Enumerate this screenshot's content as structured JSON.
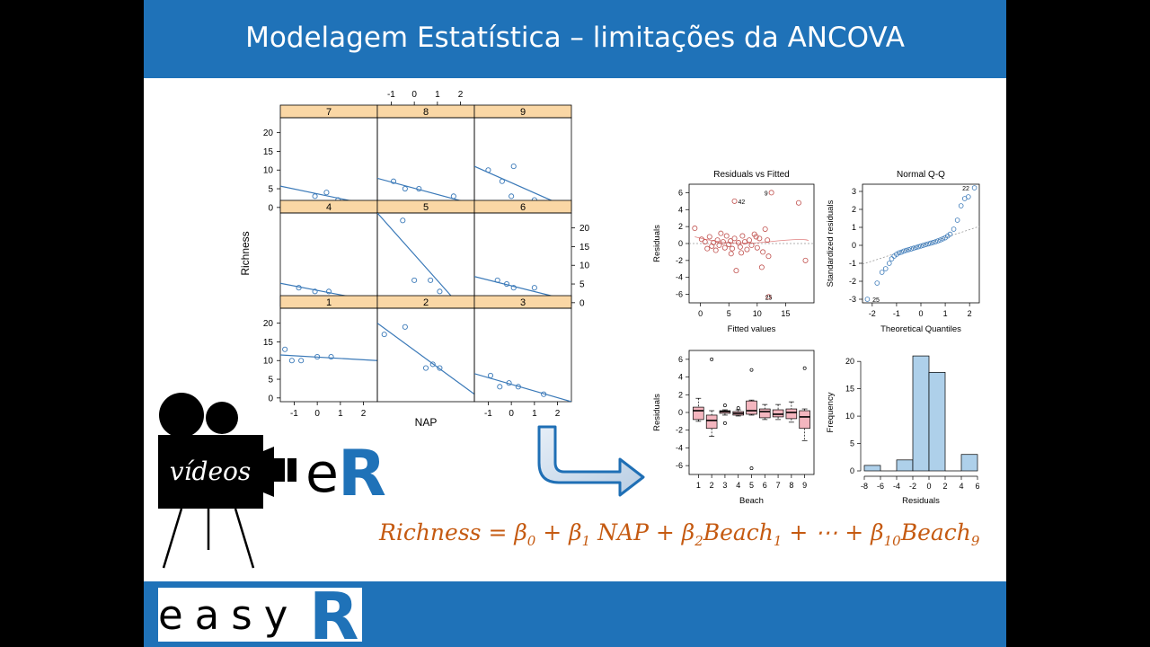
{
  "slide": {
    "title": "Modelagem Estatística –  limitações da ANCOVA",
    "formula": {
      "lhs": "Richness",
      "terms": [
        {
          "text": "= β",
          "sub": "0"
        },
        {
          "text": " + β",
          "sub": "1"
        },
        {
          "text": " NAP +  β",
          "sub": "2"
        },
        {
          "text": "Beach",
          "sub": "1"
        },
        {
          "text": " + ⋯ +  β",
          "sub": "10"
        },
        {
          "text": "Beach",
          "sub": "9"
        }
      ]
    }
  },
  "branding": {
    "videos_label": "vídeos",
    "er_e": "e",
    "er_r": "R",
    "easy_label": "easy",
    "easy_r": "R"
  },
  "colors": {
    "bar_blue": "#1f72b8",
    "strip": "#fad7a5",
    "point_blue": "#3a79b8",
    "point_red": "#c0504d",
    "formula": "#c55a11"
  },
  "chart_data": [
    {
      "type": "scatter",
      "kind": "lattice-xyplot",
      "xlabel": "NAP",
      "ylabel": "Richness",
      "xlim": [
        -1.6,
        2.6
      ],
      "ylim": [
        -1,
        24
      ],
      "xticks": [
        -1,
        0,
        1,
        2
      ],
      "yticks": [
        0,
        5,
        10,
        15,
        20
      ],
      "panels": [
        {
          "label": "7",
          "points": [
            [
              -0.1,
              3
            ],
            [
              0.4,
              4
            ],
            [
              0.9,
              2
            ],
            [
              1.4,
              1
            ],
            [
              1.8,
              1
            ]
          ],
          "line": [
            [
              -1.6,
              5.7
            ],
            [
              2.6,
              0.3
            ]
          ]
        },
        {
          "label": "8",
          "points": [
            [
              -0.9,
              7
            ],
            [
              -0.4,
              5
            ],
            [
              0.2,
              5
            ],
            [
              1.7,
              3
            ],
            [
              2.2,
              0
            ]
          ],
          "line": [
            [
              -1.6,
              7.8
            ],
            [
              2.6,
              0.8
            ]
          ]
        },
        {
          "label": "9",
          "points": [
            [
              -1.0,
              10
            ],
            [
              -0.4,
              7
            ],
            [
              0,
              3
            ],
            [
              0.1,
              11
            ],
            [
              1.0,
              2
            ],
            [
              2.2,
              0
            ]
          ],
          "line": [
            [
              -1.6,
              11
            ],
            [
              2.6,
              -0.5
            ]
          ]
        },
        {
          "label": "4",
          "points": [
            [
              -0.8,
              4
            ],
            [
              -0.1,
              3
            ],
            [
              0.5,
              3
            ],
            [
              1.4,
              1
            ],
            [
              1.8,
              1
            ]
          ],
          "line": [
            [
              -1.6,
              5.2
            ],
            [
              2.6,
              0.2
            ]
          ]
        },
        {
          "label": "5",
          "points": [
            [
              -0.5,
              22
            ],
            [
              0.0,
              6
            ],
            [
              0.7,
              6
            ],
            [
              1.1,
              3
            ],
            [
              1.6,
              0
            ]
          ],
          "line": [
            [
              -1.6,
              24
            ],
            [
              2.0,
              -1
            ]
          ]
        },
        {
          "label": "6",
          "points": [
            [
              -0.6,
              6
            ],
            [
              -0.2,
              5
            ],
            [
              0.1,
              4
            ],
            [
              1.0,
              4
            ],
            [
              2.2,
              1
            ]
          ],
          "line": [
            [
              -1.6,
              7
            ],
            [
              2.6,
              0.5
            ]
          ]
        },
        {
          "label": "1",
          "points": [
            [
              -1.4,
              13
            ],
            [
              -1.1,
              10
            ],
            [
              -0.7,
              10
            ],
            [
              0,
              11
            ],
            [
              0.6,
              11
            ]
          ],
          "line": [
            [
              -1.6,
              11.5
            ],
            [
              2.6,
              10
            ]
          ]
        },
        {
          "label": "2",
          "points": [
            [
              -1.3,
              17
            ],
            [
              -0.4,
              19
            ],
            [
              0.5,
              8
            ],
            [
              0.8,
              9
            ],
            [
              1.1,
              8
            ]
          ],
          "line": [
            [
              -1.6,
              20
            ],
            [
              2.6,
              1
            ]
          ]
        },
        {
          "label": "3",
          "points": [
            [
              -0.9,
              6
            ],
            [
              -0.5,
              3
            ],
            [
              -0.1,
              4
            ],
            [
              0.3,
              3
            ],
            [
              1.4,
              1
            ]
          ],
          "line": [
            [
              -1.6,
              6.5
            ],
            [
              2.6,
              -1
            ]
          ]
        }
      ]
    },
    {
      "type": "scatter",
      "title": "Residuals vs Fitted",
      "xlabel": "Fitted values",
      "ylabel": "Residuals",
      "xlim": [
        -2,
        20
      ],
      "ylim": [
        -7,
        7
      ],
      "xticks": [
        0,
        5,
        10,
        15
      ],
      "yticks": [
        -6,
        -4,
        -2,
        0,
        2,
        4,
        6
      ],
      "annotations": [
        {
          "label": "42",
          "x": 6,
          "y": 5
        },
        {
          "label": "9",
          "x": 12.5,
          "y": 6
        },
        {
          "label": "25",
          "x": 12,
          "y": -6.3
        }
      ],
      "points": [
        [
          -1,
          1.8
        ],
        [
          0.2,
          0.5
        ],
        [
          0.8,
          0.2
        ],
        [
          1.2,
          -0.6
        ],
        [
          1.6,
          0.8
        ],
        [
          2,
          -0.3
        ],
        [
          2.3,
          0.1
        ],
        [
          2.7,
          -0.8
        ],
        [
          3,
          0.4
        ],
        [
          3.3,
          -0.2
        ],
        [
          3.6,
          1.2
        ],
        [
          4,
          0.2
        ],
        [
          4.3,
          -0.5
        ],
        [
          4.6,
          0.9
        ],
        [
          5,
          -0.1
        ],
        [
          5.3,
          0.3
        ],
        [
          5.6,
          -0.6
        ],
        [
          6,
          0.6
        ],
        [
          6.3,
          -3.2
        ],
        [
          6,
          5
        ],
        [
          6.7,
          0.1
        ],
        [
          7,
          -0.4
        ],
        [
          7.4,
          0.9
        ],
        [
          7.8,
          0.2
        ],
        [
          8.2,
          -0.7
        ],
        [
          8.6,
          0.4
        ],
        [
          9,
          -0.2
        ],
        [
          9.5,
          1.1
        ],
        [
          10,
          -0.5
        ],
        [
          10.4,
          0.6
        ],
        [
          10.8,
          -2.8
        ],
        [
          11,
          -1
        ],
        [
          11.4,
          1.7
        ],
        [
          11.8,
          0.4
        ],
        [
          12,
          -1.5
        ],
        [
          12.5,
          6
        ],
        [
          12,
          -6.3
        ],
        [
          17.3,
          4.8
        ],
        [
          18.5,
          -2
        ],
        [
          5.4,
          -1.2
        ],
        [
          7.2,
          -1.1
        ],
        [
          9.8,
          0.8
        ]
      ]
    },
    {
      "type": "scatter",
      "title": "Normal Q-Q",
      "xlabel": "Theoretical Quantiles",
      "ylabel": "Standardized residuals",
      "xlim": [
        -2.4,
        2.4
      ],
      "ylim": [
        -3.2,
        3.4
      ],
      "xticks": [
        -2,
        -1,
        0,
        1,
        2
      ],
      "yticks": [
        -3,
        -2,
        -1,
        0,
        1,
        2,
        3
      ],
      "annotations": [
        {
          "label": "22",
          "x": 2.1,
          "y": 3.2
        },
        {
          "label": "25",
          "x": -2.1,
          "y": -3
        }
      ],
      "ref_line": [
        [
          -2.4,
          -1.05
        ],
        [
          2.4,
          1.05
        ]
      ],
      "points": [
        [
          -2.2,
          -3.0
        ],
        [
          -1.8,
          -2.1
        ],
        [
          -1.6,
          -1.5
        ],
        [
          -1.45,
          -1.3
        ],
        [
          -1.3,
          -1.0
        ],
        [
          -1.2,
          -0.75
        ],
        [
          -1.1,
          -0.6
        ],
        [
          -1.0,
          -0.5
        ],
        [
          -0.9,
          -0.42
        ],
        [
          -0.8,
          -0.38
        ],
        [
          -0.7,
          -0.32
        ],
        [
          -0.6,
          -0.28
        ],
        [
          -0.5,
          -0.24
        ],
        [
          -0.4,
          -0.2
        ],
        [
          -0.3,
          -0.16
        ],
        [
          -0.2,
          -0.12
        ],
        [
          -0.1,
          -0.08
        ],
        [
          0,
          -0.04
        ],
        [
          0.1,
          0
        ],
        [
          0.2,
          0.04
        ],
        [
          0.3,
          0.08
        ],
        [
          0.4,
          0.12
        ],
        [
          0.5,
          0.16
        ],
        [
          0.6,
          0.2
        ],
        [
          0.7,
          0.25
        ],
        [
          0.8,
          0.3
        ],
        [
          0.9,
          0.36
        ],
        [
          1.0,
          0.42
        ],
        [
          1.1,
          0.52
        ],
        [
          1.2,
          0.62
        ],
        [
          1.35,
          0.9
        ],
        [
          1.5,
          1.4
        ],
        [
          1.65,
          2.2
        ],
        [
          1.8,
          2.6
        ],
        [
          1.95,
          2.7
        ],
        [
          2.2,
          3.2
        ]
      ]
    },
    {
      "type": "box",
      "xlabel": "Beach",
      "ylabel": "Residuals",
      "categories": [
        "1",
        "2",
        "3",
        "4",
        "5",
        "6",
        "7",
        "8",
        "9"
      ],
      "ylim": [
        -7,
        7
      ],
      "yticks": [
        -6,
        -4,
        -2,
        0,
        2,
        4,
        6
      ],
      "boxes": [
        {
          "q1": -0.8,
          "med": 0.2,
          "q3": 0.6,
          "lo": -1.0,
          "hi": 1.6,
          "out": []
        },
        {
          "q1": -1.8,
          "med": -0.9,
          "q3": -0.3,
          "lo": -2.7,
          "hi": 0.2,
          "out": [
            6
          ]
        },
        {
          "q1": -0.1,
          "med": 0.1,
          "q3": 0.2,
          "lo": -0.3,
          "hi": 0.3,
          "out": [
            0.8,
            -1.2
          ]
        },
        {
          "q1": -0.3,
          "med": -0.1,
          "q3": 0.1,
          "lo": -0.4,
          "hi": 0.3,
          "out": [
            0.5
          ]
        },
        {
          "q1": -0.2,
          "med": 0.2,
          "q3": 1.3,
          "lo": -0.3,
          "hi": 1.4,
          "out": [
            4.8,
            -6.3
          ]
        },
        {
          "q1": -0.6,
          "med": 0.1,
          "q3": 0.4,
          "lo": -0.8,
          "hi": 0.9,
          "out": []
        },
        {
          "q1": -0.5,
          "med": -0.2,
          "q3": 0.3,
          "lo": -0.8,
          "hi": 0.9,
          "out": []
        },
        {
          "q1": -0.7,
          "med": 0.0,
          "q3": 0.4,
          "lo": -1.1,
          "hi": 1.2,
          "out": []
        },
        {
          "q1": -1.8,
          "med": -0.5,
          "q3": 0.2,
          "lo": -3.2,
          "hi": 0.4,
          "out": [
            5
          ]
        }
      ]
    },
    {
      "type": "bar",
      "kind": "histogram",
      "xlabel": "Residuals",
      "ylabel": "Frequency",
      "bins": [
        [
          -8,
          -6,
          1
        ],
        [
          -6,
          -4,
          0
        ],
        [
          -4,
          -2,
          2
        ],
        [
          -2,
          0,
          21
        ],
        [
          0,
          2,
          18
        ],
        [
          2,
          4,
          0
        ],
        [
          4,
          6,
          3
        ]
      ],
      "xticks": [
        -8,
        -6,
        -4,
        -2,
        0,
        2,
        4,
        6
      ],
      "yticks": [
        0,
        5,
        10,
        15,
        20
      ],
      "ylim": [
        0,
        22
      ]
    }
  ]
}
